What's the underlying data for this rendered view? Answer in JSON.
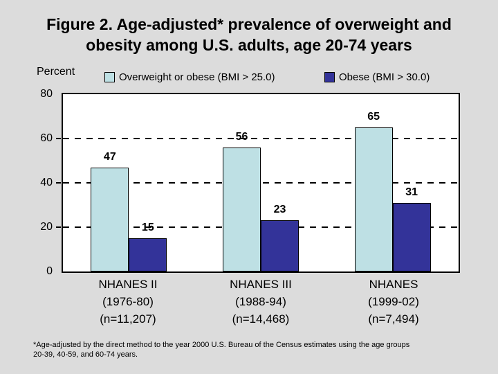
{
  "title": {
    "line1": "Figure 2. Age-adjusted* prevalence of overweight and",
    "line2": "obesity among U.S. adults, age 20-74 years"
  },
  "footnote": {
    "line1": "*Age-adjusted by the direct method to the year 2000 U.S. Bureau of the Census estimates using the age groups",
    "line2": "20-39, 40-59, and 60-74 years."
  },
  "colors": {
    "background": "#dcdcdc",
    "plot_background": "#ffffff",
    "overweight_series": "#bee0e4",
    "obese_series": "#333399",
    "axis_and_text": "#000000"
  },
  "chart_data": {
    "type": "bar",
    "title": "Figure 2. Age-adjusted* prevalence of overweight and obesity among U.S. adults, age 20-74 years",
    "ylabel": "Percent",
    "xlabel": "",
    "ylim": [
      0,
      80
    ],
    "yticks": [
      0,
      20,
      40,
      60,
      80
    ],
    "gridlines": {
      "style": "dashed",
      "orientation": "horizontal",
      "at": [
        20,
        40,
        60
      ]
    },
    "legend_position": "top",
    "categories": [
      {
        "lines": [
          "NHANES II",
          "(1976-80)",
          "(n=11,207)"
        ]
      },
      {
        "lines": [
          "NHANES III",
          "(1988-94)",
          "(n=14,468)"
        ]
      },
      {
        "lines": [
          "NHANES",
          "(1999-02)",
          "(n=7,494)"
        ]
      }
    ],
    "series": [
      {
        "name": "Overweight or obese (BMI > 25.0)",
        "values": [
          47,
          56,
          65
        ],
        "color": "#bee0e4"
      },
      {
        "name": "Obese (BMI > 30.0)",
        "values": [
          15,
          23,
          31
        ],
        "color": "#333399"
      }
    ],
    "bar_value_labels": true
  }
}
